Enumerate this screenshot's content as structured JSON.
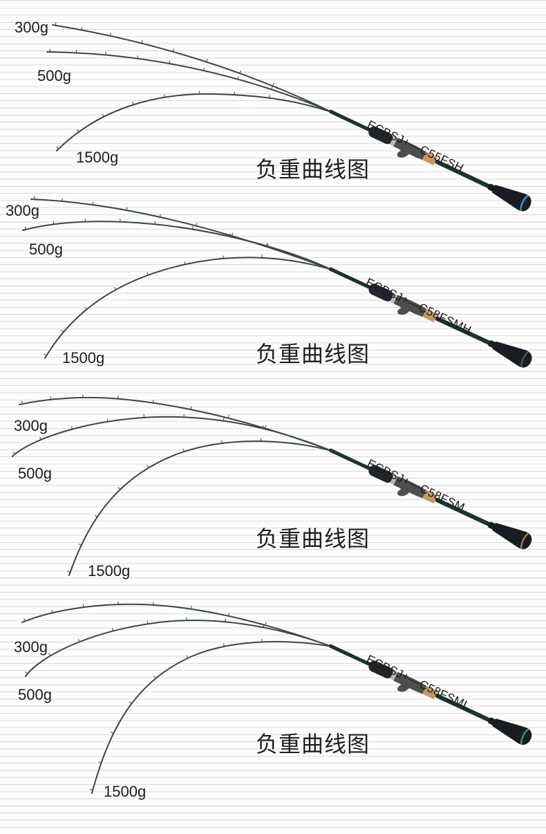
{
  "background": {
    "paper_color": "#fdfdfd",
    "stripe_color": "#d9d9d9"
  },
  "rod_colors": {
    "blank": "#1d332d",
    "foam_grip": "#20262c",
    "reel_seat": "#4b504b",
    "silver_ring": "#b6bcbe",
    "cork_ring": "#c49a5f",
    "butt_grip": "#171d23",
    "curve": "#3b4743"
  },
  "sections": [
    {
      "model": "ECBSJ+—C55FSH",
      "title": "负重曲线图",
      "load_labels": [
        "300g",
        "500g",
        "1500g"
      ],
      "accent_color": "#2f9dbf"
    },
    {
      "model": "ECBSJ+—C58FSMH",
      "title": "负重曲线图",
      "load_labels": [
        "300g",
        "500g",
        "1500g"
      ],
      "accent_color": "#4a5560"
    },
    {
      "model": "ECBSJ+—C58FSM",
      "title": "负重曲线图",
      "load_labels": [
        "300g",
        "500g",
        "1500g"
      ],
      "accent_color": "#c9732b"
    },
    {
      "model": "ECBSJ+—C58FSML",
      "title": "负重曲线图",
      "load_labels": [
        "300g",
        "500g",
        "1500g"
      ],
      "accent_color": "#2fa05c"
    }
  ]
}
